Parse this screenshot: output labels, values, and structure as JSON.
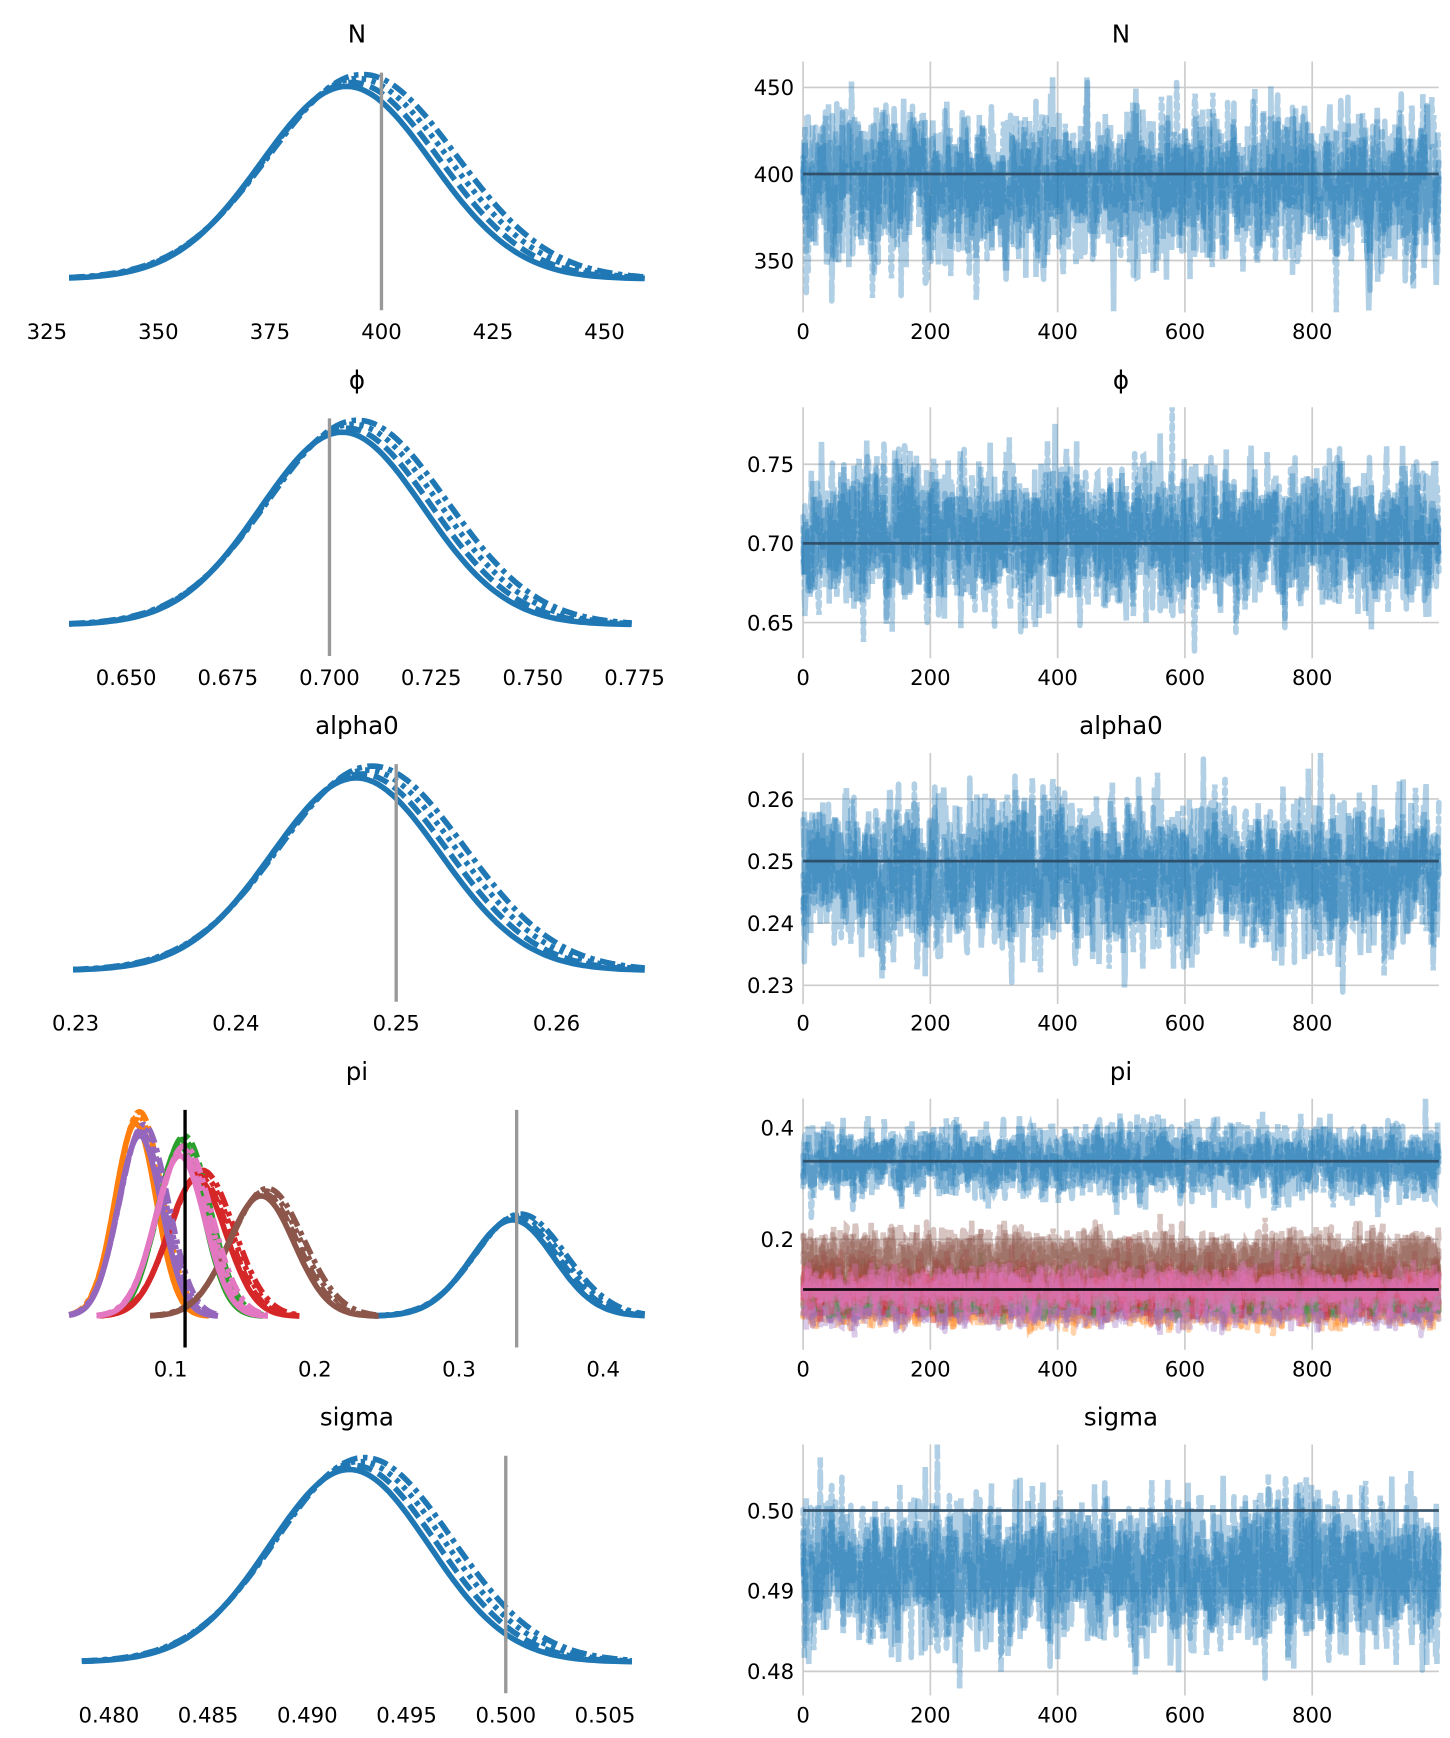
{
  "chart_data": [
    {
      "type": "line",
      "variable": "N",
      "title": "N",
      "density": {
        "xlim": [
          330,
          459
        ],
        "xticks": [
          325,
          350,
          375,
          400,
          425,
          450
        ],
        "xtick_labels": [
          "325",
          "350",
          "375",
          "400",
          "425",
          "450"
        ],
        "reference_lines": [
          {
            "value": 400,
            "color": "#999999"
          }
        ],
        "series": [
          {
            "color": "#1f77b4",
            "mean": 394,
            "sd": 20,
            "chains": 4
          }
        ]
      },
      "trace": {
        "xlim": [
          0,
          999
        ],
        "ylim": [
          320,
          465
        ],
        "xticks": [
          0,
          200,
          400,
          600,
          800
        ],
        "xtick_labels": [
          "0",
          "200",
          "400",
          "600",
          "800"
        ],
        "yticks": [
          350,
          400,
          450
        ],
        "ytick_labels": [
          "350",
          "400",
          "450"
        ],
        "reference_lines": [
          {
            "value": 400,
            "color": "#2c4a63"
          }
        ],
        "series": [
          {
            "color": "#1f77b4",
            "mean": 394,
            "sd": 20,
            "chains": 4,
            "draws": 1000
          }
        ],
        "grid": true
      }
    },
    {
      "type": "line",
      "variable": "phi",
      "title": "ϕ",
      "density": {
        "xlim": [
          0.636,
          0.7775
        ],
        "xticks": [
          0.65,
          0.675,
          0.7,
          0.725,
          0.75,
          0.775
        ],
        "xtick_labels": [
          "0.650",
          "0.675",
          "0.700",
          "0.725",
          "0.750",
          "0.775"
        ],
        "reference_lines": [
          {
            "value": 0.7,
            "color": "#999999"
          }
        ],
        "series": [
          {
            "color": "#1f77b4",
            "mean": 0.705,
            "sd": 0.021,
            "chains": 4
          }
        ]
      },
      "trace": {
        "xlim": [
          0,
          999
        ],
        "ylim": [
          0.6275,
          0.786
        ],
        "xticks": [
          0,
          200,
          400,
          600,
          800
        ],
        "xtick_labels": [
          "0",
          "200",
          "400",
          "600",
          "800"
        ],
        "yticks": [
          0.65,
          0.7,
          0.75
        ],
        "ytick_labels": [
          "0.65",
          "0.70",
          "0.75"
        ],
        "reference_lines": [
          {
            "value": 0.7,
            "color": "#2c4a63"
          }
        ],
        "series": [
          {
            "color": "#1f77b4",
            "mean": 0.705,
            "sd": 0.021,
            "chains": 4,
            "draws": 1000
          }
        ],
        "grid": true
      }
    },
    {
      "type": "line",
      "variable": "alpha0",
      "title": "alpha0",
      "density": {
        "xlim": [
          0.2296,
          0.2655
        ],
        "xticks": [
          0.23,
          0.24,
          0.25,
          0.26
        ],
        "xtick_labels": [
          "0.23",
          "0.24",
          "0.25",
          "0.26"
        ],
        "reference_lines": [
          {
            "value": 0.25,
            "color": "#999999"
          }
        ],
        "series": [
          {
            "color": "#1f77b4",
            "mean": 0.248,
            "sd": 0.0055,
            "chains": 4
          }
        ]
      },
      "trace": {
        "xlim": [
          0,
          999
        ],
        "ylim": [
          0.227,
          0.2674
        ],
        "xticks": [
          0,
          200,
          400,
          600,
          800
        ],
        "xtick_labels": [
          "0",
          "200",
          "400",
          "600",
          "800"
        ],
        "yticks": [
          0.23,
          0.24,
          0.25,
          0.26
        ],
        "ytick_labels": [
          "0.23",
          "0.24",
          "0.25",
          "0.26"
        ],
        "reference_lines": [
          {
            "value": 0.25,
            "color": "#2c4a63"
          }
        ],
        "series": [
          {
            "color": "#1f77b4",
            "mean": 0.248,
            "sd": 0.0055,
            "chains": 4,
            "draws": 1000
          }
        ],
        "grid": true
      }
    },
    {
      "type": "line",
      "variable": "pi",
      "title": "pi",
      "density": {
        "xlim": [
          0.0296,
          0.4288
        ],
        "xticks": [
          0.1,
          0.2,
          0.3,
          0.4
        ],
        "xtick_labels": [
          "0.1",
          "0.2",
          "0.3",
          "0.4"
        ],
        "reference_lines": [
          {
            "value": 0.11,
            "color": "#000000"
          },
          {
            "value": 0.34,
            "color": "#999999"
          }
        ],
        "series": [
          {
            "color": "#1f77b4",
            "mean": 0.34,
            "sd": 0.03,
            "chains": 4
          },
          {
            "color": "#ff7f0e",
            "mean": 0.077,
            "sd": 0.015,
            "chains": 4
          },
          {
            "color": "#2ca02c",
            "mean": 0.108,
            "sd": 0.017,
            "chains": 4
          },
          {
            "color": "#d62728",
            "mean": 0.12,
            "sd": 0.021,
            "chains": 4
          },
          {
            "color": "#9467bd",
            "mean": 0.08,
            "sd": 0.016,
            "chains": 4
          },
          {
            "color": "#8c564b",
            "mean": 0.165,
            "sd": 0.024,
            "chains": 4
          },
          {
            "color": "#e377c2",
            "mean": 0.108,
            "sd": 0.018,
            "chains": 4
          }
        ]
      },
      "trace": {
        "xlim": [
          0,
          999
        ],
        "ylim": [
          0.002,
          0.452
        ],
        "xticks": [
          0,
          200,
          400,
          600,
          800
        ],
        "xtick_labels": [
          "0",
          "200",
          "400",
          "600",
          "800"
        ],
        "yticks": [
          0.2,
          0.4
        ],
        "ytick_labels": [
          "0.2",
          "0.4"
        ],
        "reference_lines": [
          {
            "value": 0.34,
            "color": "#2c4a63"
          },
          {
            "value": 0.11,
            "color": "#000000"
          }
        ],
        "series": [
          {
            "color": "#ff7f0e",
            "mean": 0.077,
            "sd": 0.015,
            "chains": 4,
            "draws": 1000
          },
          {
            "color": "#9467bd",
            "mean": 0.08,
            "sd": 0.016,
            "chains": 4,
            "draws": 1000
          },
          {
            "color": "#2ca02c",
            "mean": 0.108,
            "sd": 0.017,
            "chains": 4,
            "draws": 1000
          },
          {
            "color": "#d62728",
            "mean": 0.12,
            "sd": 0.021,
            "chains": 4,
            "draws": 1000
          },
          {
            "color": "#8c564b",
            "mean": 0.165,
            "sd": 0.024,
            "chains": 4,
            "draws": 1000
          },
          {
            "color": "#e377c2",
            "mean": 0.108,
            "sd": 0.018,
            "chains": 4,
            "draws": 1000
          },
          {
            "color": "#1f77b4",
            "mean": 0.34,
            "sd": 0.03,
            "chains": 4,
            "draws": 1000
          }
        ],
        "grid": true
      }
    },
    {
      "type": "line",
      "variable": "sigma",
      "title": "sigma",
      "density": {
        "xlim": [
          0.478,
          0.507
        ],
        "xticks": [
          0.48,
          0.485,
          0.49,
          0.495,
          0.5,
          0.505
        ],
        "xtick_labels": [
          "0.480",
          "0.485",
          "0.490",
          "0.495",
          "0.500",
          "0.505"
        ],
        "reference_lines": [
          {
            "value": 0.5,
            "color": "#999999"
          }
        ],
        "series": [
          {
            "color": "#1f77b4",
            "mean": 0.4925,
            "sd": 0.0042,
            "chains": 4
          }
        ]
      },
      "trace": {
        "xlim": [
          0,
          999
        ],
        "ylim": [
          0.477,
          0.5082
        ],
        "xticks": [
          0,
          200,
          400,
          600,
          800
        ],
        "xtick_labels": [
          "0",
          "200",
          "400",
          "600",
          "800"
        ],
        "yticks": [
          0.48,
          0.49,
          0.5
        ],
        "ytick_labels": [
          "0.48",
          "0.49",
          "0.50"
        ],
        "reference_lines": [
          {
            "value": 0.5,
            "color": "#2c4a63"
          }
        ],
        "series": [
          {
            "color": "#1f77b4",
            "mean": 0.4925,
            "sd": 0.0042,
            "chains": 4,
            "draws": 1000
          }
        ],
        "grid": true
      }
    }
  ]
}
